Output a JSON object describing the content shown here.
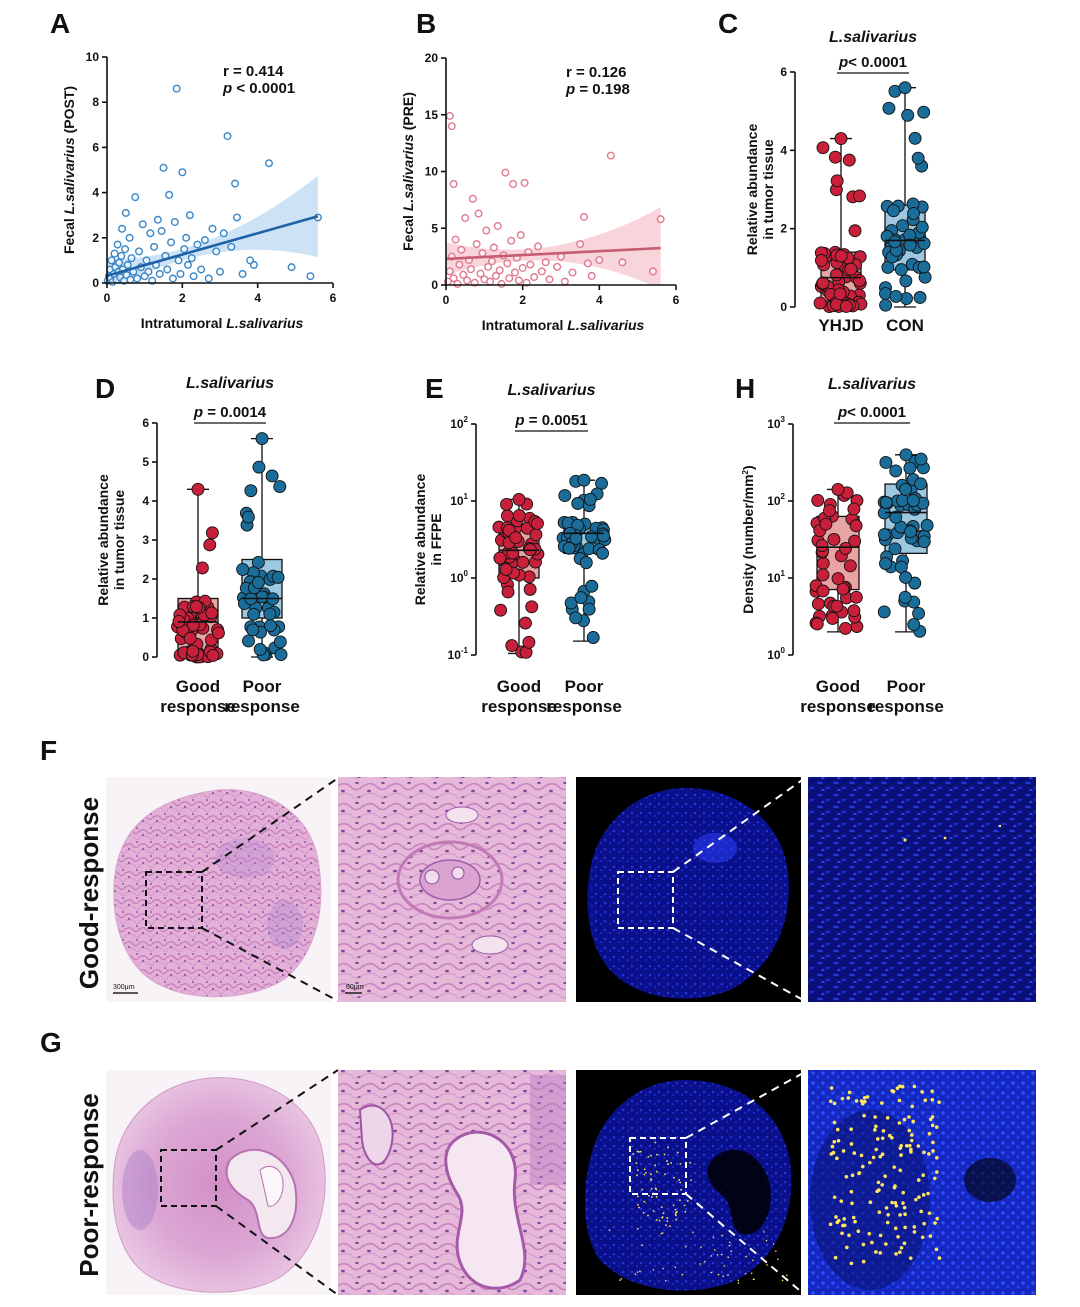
{
  "panels": {
    "A": "A",
    "B": "B",
    "C": "C",
    "D": "D",
    "E": "E",
    "H": "H",
    "F": "F",
    "G": "G"
  },
  "histology": {
    "row_f_label": "Good-response",
    "row_g_label": "Poor-response",
    "scale_big": "300μm",
    "scale_small": "60μm"
  },
  "colors": {
    "blue_point": "#3a87c8",
    "blue_line": "#1f62a6",
    "blue_band": "#bcd9f1",
    "pink_point": "#e07a8e",
    "pink_line": "#c85c73",
    "pink_band": "#f6c6cf",
    "red_box": "#e8a3a3",
    "red_point": "#c8203a",
    "teal_box": "#9ec7e0",
    "teal_point": "#1a6c99"
  },
  "chart_data": [
    {
      "id": "A",
      "type": "scatter",
      "xlabel_prefix": "Intratumoral ",
      "xlabel_italic": "L.salivarius",
      "ylabel_prefix": "Fecal ",
      "ylabel_italic": "L.salivarius",
      "ylabel_suffix": " (POST)",
      "xlim": [
        0,
        6
      ],
      "ylim": [
        0,
        10
      ],
      "xticks": [
        "0",
        "2",
        "4",
        "6"
      ],
      "yticks": [
        "0",
        "2",
        "4",
        "6",
        "8",
        "10"
      ],
      "stat_line1": "r  = 0.414",
      "stat_line2_sym": "p",
      "stat_line2_val": "<  0.0001",
      "fit": {
        "intercept": 0.32,
        "slope": 0.47
      },
      "points": [
        [
          0.02,
          0.1
        ],
        [
          0.05,
          0.3
        ],
        [
          0.08,
          0.6
        ],
        [
          0.1,
          0.2
        ],
        [
          0.12,
          1.0
        ],
        [
          0.15,
          0.05
        ],
        [
          0.18,
          0.4
        ],
        [
          0.2,
          1.3
        ],
        [
          0.22,
          0.7
        ],
        [
          0.25,
          0.15
        ],
        [
          0.28,
          1.7
        ],
        [
          0.3,
          0.5
        ],
        [
          0.32,
          0.9
        ],
        [
          0.35,
          0.25
        ],
        [
          0.38,
          1.2
        ],
        [
          0.4,
          2.4
        ],
        [
          0.42,
          0.6
        ],
        [
          0.45,
          0.1
        ],
        [
          0.48,
          1.5
        ],
        [
          0.5,
          3.1
        ],
        [
          0.52,
          0.35
        ],
        [
          0.55,
          0.8
        ],
        [
          0.6,
          2.0
        ],
        [
          0.62,
          0.15
        ],
        [
          0.65,
          1.1
        ],
        [
          0.7,
          0.5
        ],
        [
          0.75,
          3.8
        ],
        [
          0.8,
          0.2
        ],
        [
          0.85,
          1.4
        ],
        [
          0.9,
          0.7
        ],
        [
          0.95,
          2.6
        ],
        [
          1.0,
          0.3
        ],
        [
          1.05,
          1.0
        ],
        [
          1.1,
          0.5
        ],
        [
          1.15,
          2.2
        ],
        [
          1.2,
          0.1
        ],
        [
          1.25,
          1.6
        ],
        [
          1.3,
          0.8
        ],
        [
          1.35,
          2.8
        ],
        [
          1.4,
          0.4
        ],
        [
          1.45,
          2.3
        ],
        [
          1.5,
          5.1
        ],
        [
          1.55,
          1.2
        ],
        [
          1.6,
          0.6
        ],
        [
          1.65,
          3.9
        ],
        [
          1.7,
          1.8
        ],
        [
          1.75,
          0.2
        ],
        [
          1.8,
          2.7
        ],
        [
          1.85,
          8.6
        ],
        [
          1.9,
          1.0
        ],
        [
          1.95,
          0.4
        ],
        [
          2.0,
          4.9
        ],
        [
          2.05,
          1.5
        ],
        [
          2.1,
          2.0
        ],
        [
          2.15,
          0.8
        ],
        [
          2.2,
          3.0
        ],
        [
          2.25,
          1.1
        ],
        [
          2.3,
          0.3
        ],
        [
          2.4,
          1.7
        ],
        [
          2.5,
          0.6
        ],
        [
          2.6,
          1.9
        ],
        [
          2.7,
          0.2
        ],
        [
          2.8,
          2.4
        ],
        [
          2.9,
          1.4
        ],
        [
          3.0,
          0.5
        ],
        [
          3.1,
          2.2
        ],
        [
          3.2,
          6.5
        ],
        [
          3.3,
          1.6
        ],
        [
          3.4,
          4.4
        ],
        [
          3.45,
          2.9
        ],
        [
          3.6,
          0.4
        ],
        [
          3.8,
          1.0
        ],
        [
          3.9,
          0.8
        ],
        [
          4.3,
          5.3
        ],
        [
          4.9,
          0.7
        ],
        [
          5.4,
          0.3
        ],
        [
          5.6,
          2.9
        ]
      ]
    },
    {
      "id": "B",
      "type": "scatter",
      "xlabel_prefix": "Intratumoral  ",
      "xlabel_italic": "L.salivarius",
      "ylabel_prefix": "Fecal ",
      "ylabel_italic": "L.salivarius",
      "ylabel_suffix": " (PRE)",
      "xlim": [
        0,
        6
      ],
      "ylim": [
        0,
        20
      ],
      "xticks": [
        "0",
        "2",
        "4",
        "6"
      ],
      "yticks": [
        "0",
        "5",
        "10",
        "15",
        "20"
      ],
      "stat_line1": "r  = 0.126",
      "stat_line2_sym": "p",
      "stat_line2_val": "= 0.198",
      "fit": {
        "intercept": 2.3,
        "slope": 0.17
      },
      "points": [
        [
          0.1,
          14.9
        ],
        [
          0.15,
          14.0
        ],
        [
          0.2,
          8.9
        ],
        [
          0.05,
          0.3
        ],
        [
          0.1,
          1.2
        ],
        [
          0.15,
          2.5
        ],
        [
          0.2,
          0.6
        ],
        [
          0.25,
          4.0
        ],
        [
          0.3,
          0.1
        ],
        [
          0.35,
          1.8
        ],
        [
          0.4,
          3.1
        ],
        [
          0.45,
          0.9
        ],
        [
          0.5,
          5.9
        ],
        [
          0.55,
          0.4
        ],
        [
          0.6,
          2.2
        ],
        [
          0.65,
          1.4
        ],
        [
          0.7,
          7.6
        ],
        [
          0.75,
          0.2
        ],
        [
          0.8,
          3.6
        ],
        [
          0.85,
          6.3
        ],
        [
          0.9,
          1.0
        ],
        [
          0.95,
          2.8
        ],
        [
          1.0,
          0.5
        ],
        [
          1.05,
          4.8
        ],
        [
          1.1,
          1.6
        ],
        [
          1.15,
          0.3
        ],
        [
          1.2,
          2.1
        ],
        [
          1.25,
          3.3
        ],
        [
          1.3,
          0.8
        ],
        [
          1.35,
          5.2
        ],
        [
          1.4,
          1.3
        ],
        [
          1.45,
          0.1
        ],
        [
          1.5,
          2.6
        ],
        [
          1.55,
          9.9
        ],
        [
          1.6,
          1.9
        ],
        [
          1.65,
          0.6
        ],
        [
          1.7,
          3.9
        ],
        [
          1.75,
          8.9
        ],
        [
          1.8,
          1.1
        ],
        [
          1.85,
          2.4
        ],
        [
          1.9,
          0.4
        ],
        [
          1.95,
          4.4
        ],
        [
          2.0,
          1.5
        ],
        [
          2.05,
          9.0
        ],
        [
          2.1,
          0.2
        ],
        [
          2.15,
          2.9
        ],
        [
          2.2,
          1.8
        ],
        [
          2.3,
          0.7
        ],
        [
          2.4,
          3.4
        ],
        [
          2.5,
          1.2
        ],
        [
          2.6,
          2.0
        ],
        [
          2.7,
          0.5
        ],
        [
          2.9,
          1.6
        ],
        [
          3.0,
          2.5
        ],
        [
          3.1,
          0.3
        ],
        [
          3.3,
          1.1
        ],
        [
          3.5,
          3.6
        ],
        [
          3.6,
          6.0
        ],
        [
          3.7,
          1.9
        ],
        [
          3.8,
          0.8
        ],
        [
          4.0,
          2.2
        ],
        [
          4.3,
          11.4
        ],
        [
          4.6,
          2.0
        ],
        [
          5.4,
          1.2
        ],
        [
          5.6,
          5.8
        ]
      ]
    },
    {
      "id": "C",
      "type": "box",
      "title": "L.salivarius",
      "ylabel1": "Relative abundance",
      "ylabel2": "in tumor tissue",
      "ylim": [
        0,
        6
      ],
      "log": false,
      "yticks": [
        {
          "v": 0,
          "t": "0"
        },
        {
          "v": 2,
          "t": "2"
        },
        {
          "v": 4,
          "t": "4"
        },
        {
          "v": 6,
          "t": "6"
        }
      ],
      "sig": {
        "sym": "p",
        "text": "< 0.0001"
      },
      "groups": [
        {
          "label1": "YHJD",
          "label2": "",
          "min": 0.0,
          "q1": 0.15,
          "median": 0.75,
          "q3": 1.4,
          "max": 4.3,
          "n": 60
        },
        {
          "label1": "CON",
          "label2": "",
          "min": 0.0,
          "q1": 0.95,
          "median": 1.7,
          "q3": 2.6,
          "max": 5.6,
          "n": 48
        }
      ]
    },
    {
      "id": "D",
      "type": "box",
      "title": "L.salivarius",
      "ylabel1": "Relative abundance",
      "ylabel2": "in tumor tissue",
      "ylim": [
        0,
        6
      ],
      "log": false,
      "yticks": [
        {
          "v": 0,
          "t": "0"
        },
        {
          "v": 1,
          "t": "1"
        },
        {
          "v": 2,
          "t": "2"
        },
        {
          "v": 3,
          "t": "3"
        },
        {
          "v": 4,
          "t": "4"
        },
        {
          "v": 5,
          "t": "5"
        },
        {
          "v": 6,
          "t": "6"
        }
      ],
      "sig": {
        "sym": "p",
        "text": " = 0.0014"
      },
      "groups": [
        {
          "label1": "Good",
          "label2": "response",
          "min": 0.0,
          "q1": 0.15,
          "median": 0.9,
          "q3": 1.5,
          "max": 4.3,
          "n": 60
        },
        {
          "label1": "Poor",
          "label2": "response",
          "min": 0.0,
          "q1": 1.0,
          "median": 1.5,
          "q3": 2.5,
          "max": 5.6,
          "n": 48
        }
      ]
    },
    {
      "id": "E",
      "type": "box",
      "title": "L.salivarius",
      "ylabel1": "Relative abundance",
      "ylabel2": "in FFPE",
      "ylim": [
        -1,
        2
      ],
      "log": true,
      "yticks": [
        {
          "v": -1,
          "t": "10",
          "e": "-1"
        },
        {
          "v": 0,
          "t": "10",
          "e": "0"
        },
        {
          "v": 1,
          "t": "10",
          "e": "1"
        },
        {
          "v": 2,
          "t": "10",
          "e": "2"
        }
      ],
      "sig": {
        "sym": "p",
        "text": " = 0.0051"
      },
      "groups": [
        {
          "label1": "Good",
          "label2": "response",
          "min": -0.98,
          "q1": 0.0,
          "median": 0.36,
          "q3": 0.68,
          "max": 1.02,
          "n": 55
        },
        {
          "label1": "Poor",
          "label2": "response",
          "min": -0.82,
          "q1": 0.32,
          "median": 0.58,
          "q3": 0.7,
          "max": 1.27,
          "n": 52
        }
      ]
    },
    {
      "id": "H",
      "type": "box",
      "title": "L.salivarius",
      "ylabel1": "Density (number/mm",
      "ylabel_sup": "2",
      "ylabel1_end": ")",
      "ylabel2": "",
      "ylim": [
        0,
        3
      ],
      "log": true,
      "yticks": [
        {
          "v": 0,
          "t": "10",
          "e": "0"
        },
        {
          "v": 1,
          "t": "10",
          "e": "1"
        },
        {
          "v": 2,
          "t": "10",
          "e": "2"
        },
        {
          "v": 3,
          "t": "10",
          "e": "3"
        }
      ],
      "sig": {
        "sym": "p",
        "text": "< 0.0001"
      },
      "groups": [
        {
          "label1": "Good",
          "label2": "response",
          "min": 0.3,
          "q1": 0.85,
          "median": 1.4,
          "q3": 1.8,
          "max": 2.15,
          "n": 48
        },
        {
          "label1": "Poor",
          "label2": "response",
          "min": 0.3,
          "q1": 1.32,
          "median": 1.85,
          "q3": 2.22,
          "max": 2.6,
          "n": 56
        }
      ]
    }
  ]
}
